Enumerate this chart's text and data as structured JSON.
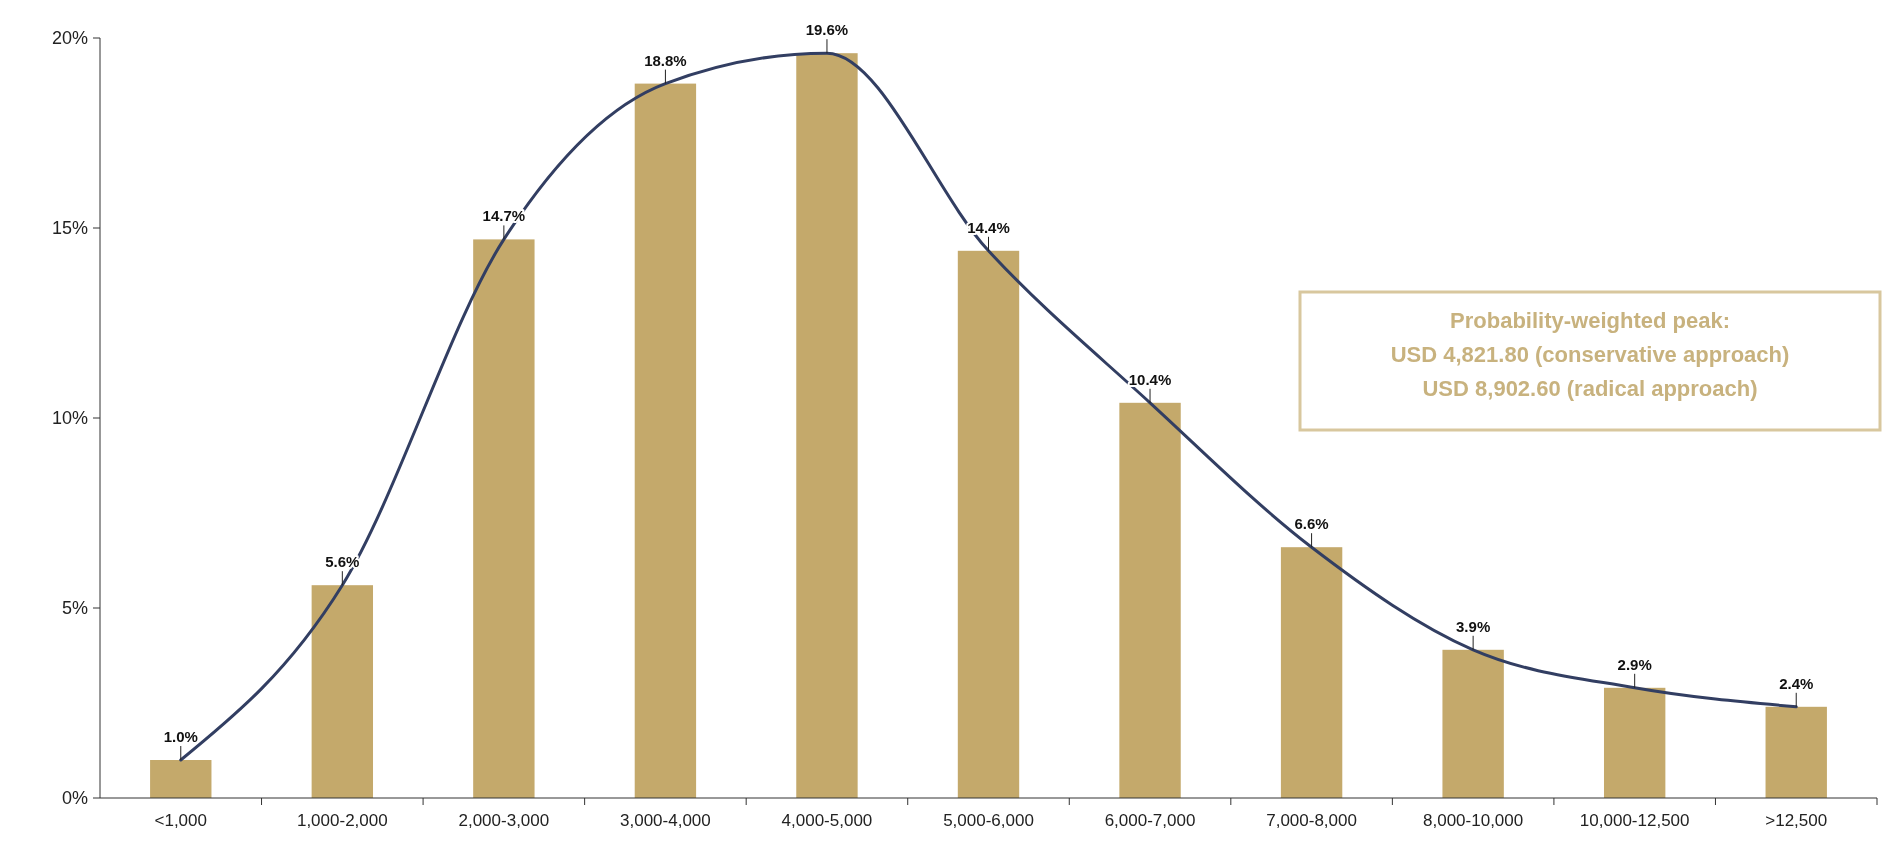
{
  "chart_data": {
    "type": "bar",
    "categories": [
      "<1,000",
      "1,000-2,000",
      "2,000-3,000",
      "3,000-4,000",
      "4,000-5,000",
      "5,000-6,000",
      "6,000-7,000",
      "7,000-8,000",
      "8,000-10,000",
      "10,000-12,500",
      ">12,500"
    ],
    "series": [
      {
        "color": "#c4a96b",
        "values": [
          1.0,
          5.6,
          14.7,
          18.8,
          19.6,
          14.4,
          10.4,
          6.6,
          3.9,
          2.9,
          2.4
        ],
        "value_labels": [
          "1.0%",
          "5.6%",
          "14.7%",
          "18.8%",
          "19.6%",
          "14.4%",
          "10.4%",
          "6.6%",
          "3.9%",
          "2.9%",
          "2.4%"
        ]
      },
      {
        "type": "line",
        "color": "#323e62",
        "values": [
          1.0,
          5.6,
          14.7,
          18.8,
          19.6,
          14.4,
          10.4,
          6.6,
          3.9,
          2.9,
          2.4
        ]
      }
    ],
    "ylim": [
      0,
      20
    ],
    "yticks": [
      {
        "value": 0,
        "label": "0%"
      },
      {
        "value": 5,
        "label": "5%"
      },
      {
        "value": 10,
        "label": "10%"
      },
      {
        "value": 15,
        "label": "15%"
      },
      {
        "value": 20,
        "label": "20%"
      }
    ],
    "grid": false,
    "annotations": [
      "Probability-weighted peak:",
      "USD 4,821.80 (conservative approach)",
      "USD 8,902.60 (radical approach)"
    ]
  }
}
